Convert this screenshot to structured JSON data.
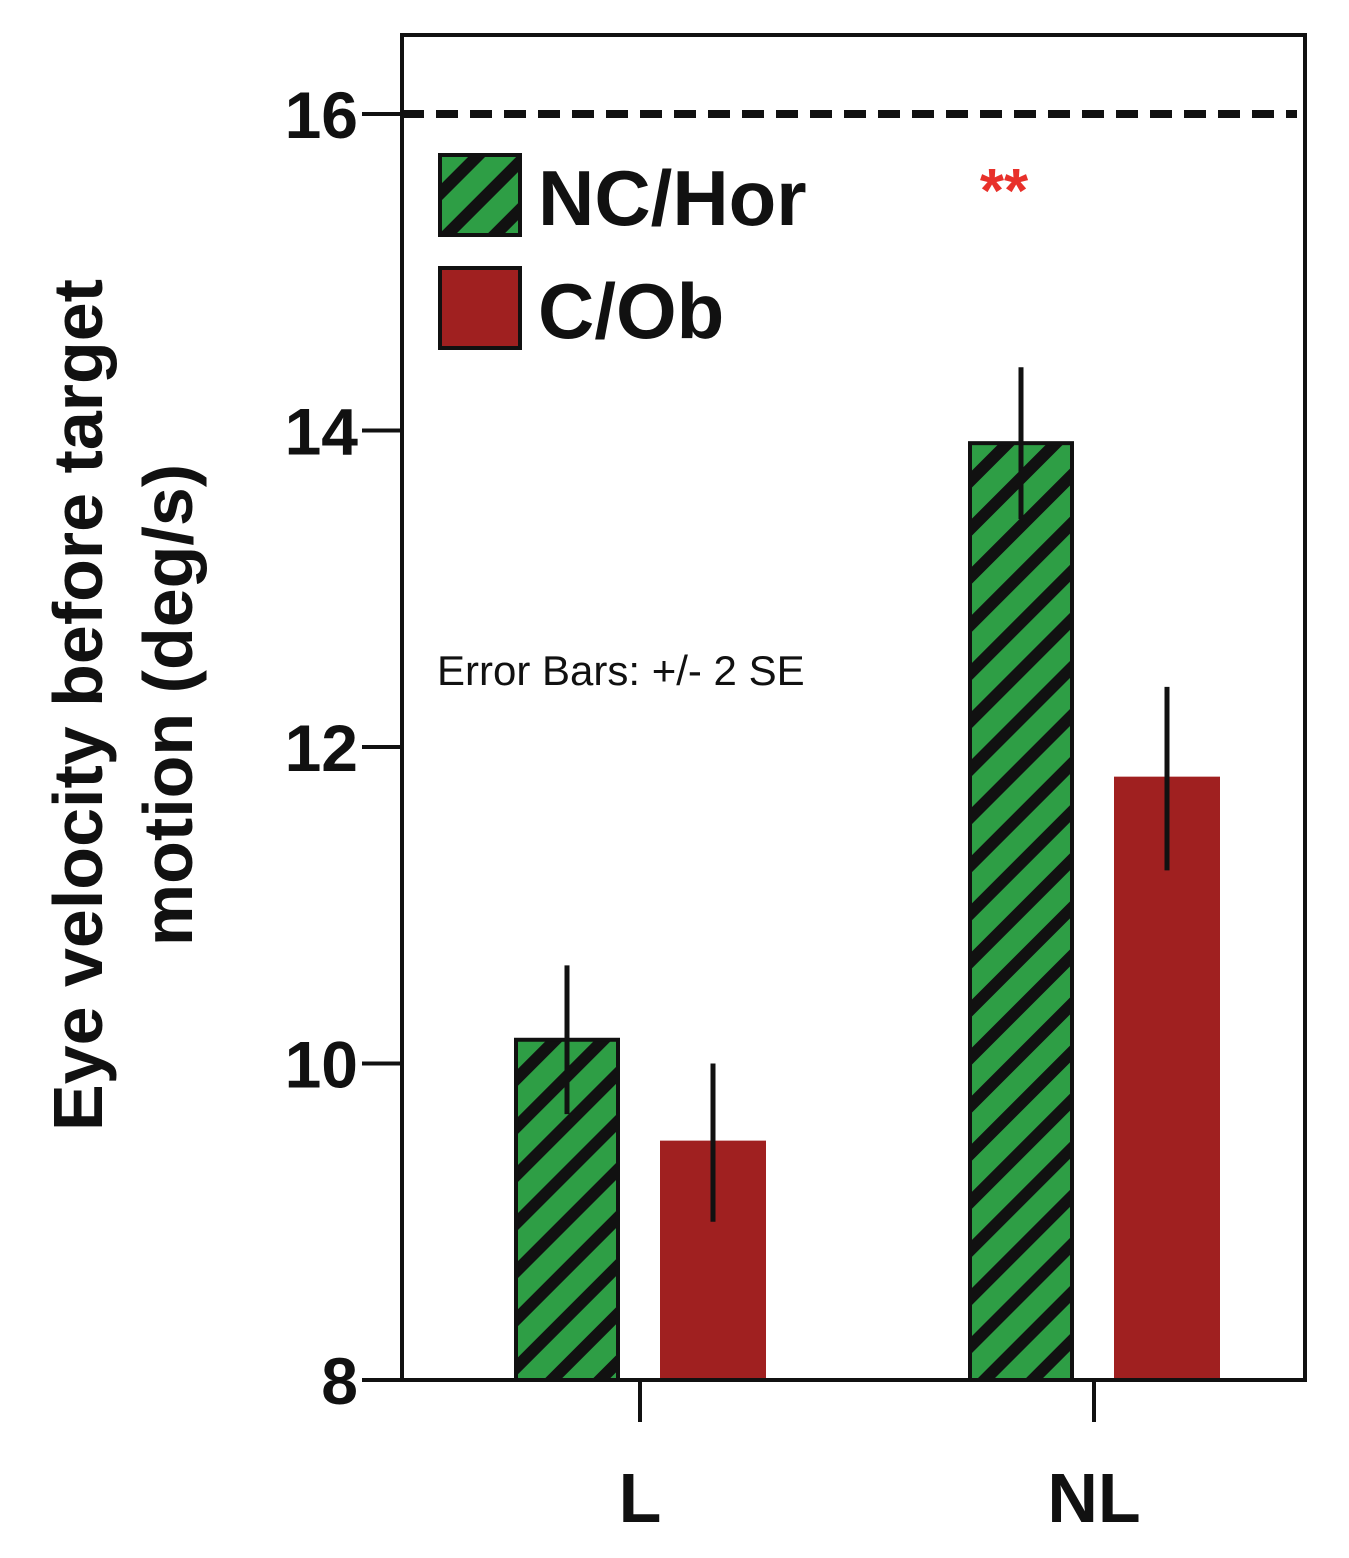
{
  "chart_data": {
    "type": "bar",
    "ylabel": "Eye velocity before target motion (deg/s)",
    "xlabel": "",
    "ylim": [
      8,
      16.5
    ],
    "yticks": [
      8,
      10,
      12,
      14,
      16
    ],
    "categories": [
      "L",
      "NL"
    ],
    "series": [
      {
        "name": "NC/Hor",
        "values": [
          10.15,
          13.92
        ],
        "errors": [
          0.47,
          0.48
        ],
        "color": "#2e9e45",
        "pattern": "hatched"
      },
      {
        "name": "C/Ob",
        "values": [
          9.5,
          11.8
        ],
        "errors": [
          0.5,
          0.58
        ],
        "color": "#a02020",
        "pattern": "solid"
      }
    ],
    "reference_line": {
      "y": 16,
      "style": "dashed"
    },
    "annotations": [
      {
        "text": "Error Bars: +/- 2 SE"
      },
      {
        "text": "**",
        "category": "NL",
        "color": "#e8302a"
      }
    ],
    "legend_position": "top-left",
    "grid": false
  }
}
